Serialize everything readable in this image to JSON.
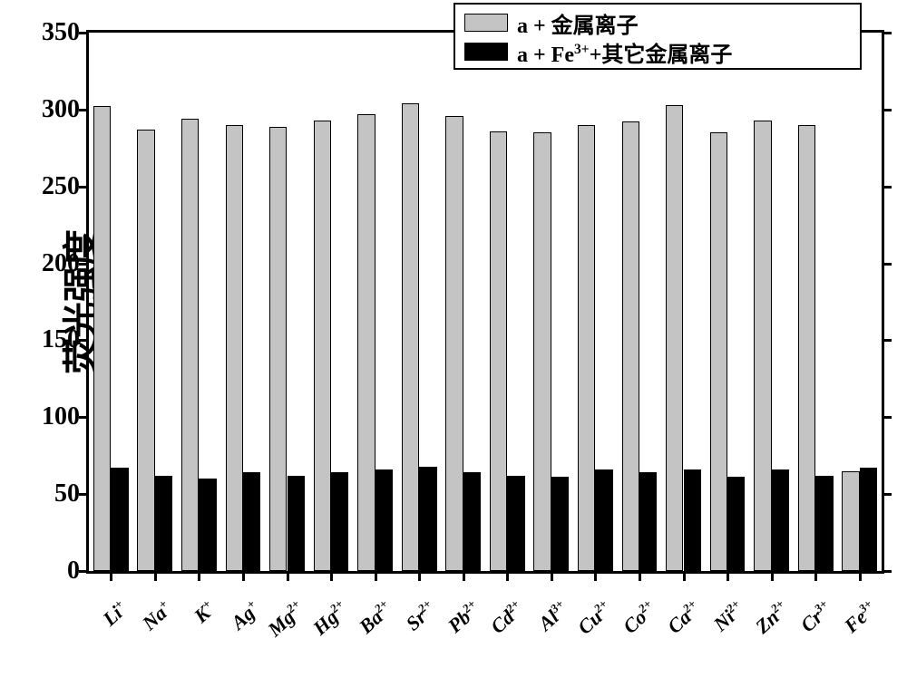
{
  "chart": {
    "type": "bar",
    "background_color": "#ffffff",
    "border_color": "#000000",
    "border_width": 3,
    "y_axis": {
      "label": "荧光强度",
      "label_fontsize": 40,
      "min": 0,
      "max": 350,
      "tick_step": 50,
      "ticks": [
        0,
        50,
        100,
        150,
        200,
        250,
        300,
        350
      ],
      "tick_fontsize": 28
    },
    "x_axis": {
      "label_fontsize": 22,
      "label_rotation": -42
    },
    "legend": {
      "items": [
        {
          "label_html": "a + 金属离子",
          "swatch_color": "#c4c4c4"
        },
        {
          "label_html": "a + Fe<sup>3+</sup>+其它金属离子",
          "swatch_color": "#000000"
        }
      ],
      "border_color": "#000000",
      "fontsize": 24
    },
    "series_colors": {
      "series1": "#c4c4c4",
      "series2": "#000000"
    },
    "bar_border_color": "#000000",
    "categories": [
      {
        "label_html": "Li<sup>+</sup>",
        "s1": 302,
        "s2": 67
      },
      {
        "label_html": "Na<sup>+</sup>",
        "s1": 287,
        "s2": 62
      },
      {
        "label_html": "K<sup>+</sup>",
        "s1": 294,
        "s2": 60
      },
      {
        "label_html": "Ag<sup>+</sup>",
        "s1": 290,
        "s2": 64
      },
      {
        "label_html": "Mg<sup>2+</sup>",
        "s1": 289,
        "s2": 62
      },
      {
        "label_html": "Hg<sup>2+</sup>",
        "s1": 293,
        "s2": 64
      },
      {
        "label_html": "Ba<sup>2+</sup>",
        "s1": 297,
        "s2": 66
      },
      {
        "label_html": "Sr<sup>2+</sup>",
        "s1": 304,
        "s2": 68
      },
      {
        "label_html": "Pb<sup>2+</sup>",
        "s1": 296,
        "s2": 64
      },
      {
        "label_html": "Cd<sup>2+</sup>",
        "s1": 286,
        "s2": 62
      },
      {
        "label_html": "Al<sup>3+</sup>",
        "s1": 285,
        "s2": 61
      },
      {
        "label_html": "Cu<sup>2+</sup>",
        "s1": 290,
        "s2": 66
      },
      {
        "label_html": "Co<sup>2+</sup>",
        "s1": 292,
        "s2": 64
      },
      {
        "label_html": "Ca<sup>2+</sup>",
        "s1": 303,
        "s2": 66
      },
      {
        "label_html": "Ni<sup>2+</sup>",
        "s1": 285,
        "s2": 61
      },
      {
        "label_html": "Zn<sup>2+</sup>",
        "s1": 293,
        "s2": 66
      },
      {
        "label_html": "Cr<sup>3+</sup>",
        "s1": 290,
        "s2": 62
      },
      {
        "label_html": "Fe<sup>3+</sup>",
        "s1": 65,
        "s2": 67
      }
    ]
  }
}
